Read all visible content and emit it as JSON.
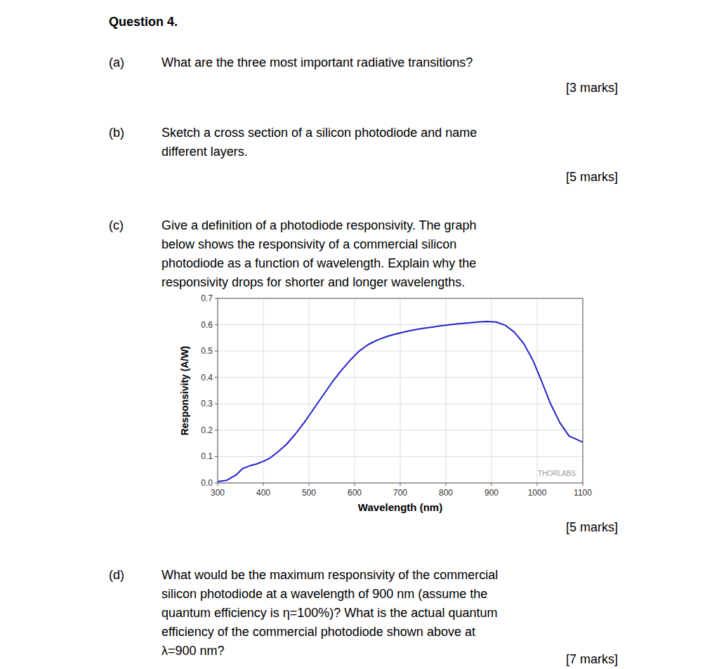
{
  "chart_data": {
    "type": "line",
    "title": "Question 4.",
    "annotations": [
      {
        "label": "(a)",
        "lines": [
          "What are the three most important radiative transitions?"
        ],
        "marks": "[3 marks]"
      },
      {
        "label": "(b)",
        "lines": [
          "Sketch a cross section of a silicon photodiode and name",
          "different layers."
        ],
        "marks": "[5 marks]"
      },
      {
        "label": "(c)",
        "lines": [
          "Give a definition of a photodiode responsivity. The graph",
          "below shows the responsivity of a commercial silicon",
          "photodiode as a function of wavelength. Explain why the",
          "responsivity drops for shorter and longer wavelengths."
        ],
        "marks": "[5 marks]"
      },
      {
        "label": "(d)",
        "lines": [
          "What would be the maximum responsivity of the commercial",
          "silicon photodiode at a wavelength of 900 nm (assume the",
          "quantum efficiency is η=100%)? What is the actual quantum",
          "efficiency of the commercial photodiode shown above at",
          "λ=900 nm?"
        ],
        "marks": "[7 marks]"
      },
      {
        "text": "THORLABS"
      }
    ],
    "x_label": "Wavelength (nm)",
    "y_label": "Responsivity (A/W)",
    "x": [
      300,
      320,
      340,
      355,
      370,
      385,
      400,
      415,
      430,
      450,
      470,
      490,
      510,
      530,
      550,
      570,
      590,
      610,
      630,
      650,
      670,
      690,
      710,
      730,
      750,
      770,
      790,
      810,
      830,
      850,
      870,
      890,
      910,
      930,
      950,
      970,
      990,
      1010,
      1030,
      1050,
      1070,
      1100
    ],
    "values": [
      0.005,
      0.01,
      0.03,
      0.055,
      0.065,
      0.072,
      0.082,
      0.095,
      0.115,
      0.145,
      0.185,
      0.23,
      0.28,
      0.33,
      0.38,
      0.425,
      0.465,
      0.5,
      0.525,
      0.542,
      0.555,
      0.565,
      0.573,
      0.58,
      0.586,
      0.591,
      0.596,
      0.6,
      0.604,
      0.607,
      0.61,
      0.612,
      0.61,
      0.598,
      0.572,
      0.53,
      0.468,
      0.385,
      0.298,
      0.228,
      0.178,
      0.155
    ],
    "color": "#2222cc",
    "grid": true,
    "xlim": [
      300,
      1100
    ],
    "ylim": [
      0.0,
      0.7
    ],
    "xticks": [
      300,
      400,
      500,
      600,
      700,
      800,
      900,
      1000,
      1100
    ],
    "yticks": [
      {
        "value": 0.0,
        "label": "0.0"
      },
      0.1,
      0.2,
      0.3,
      0.4,
      0.5,
      0.6,
      0.7
    ]
  }
}
